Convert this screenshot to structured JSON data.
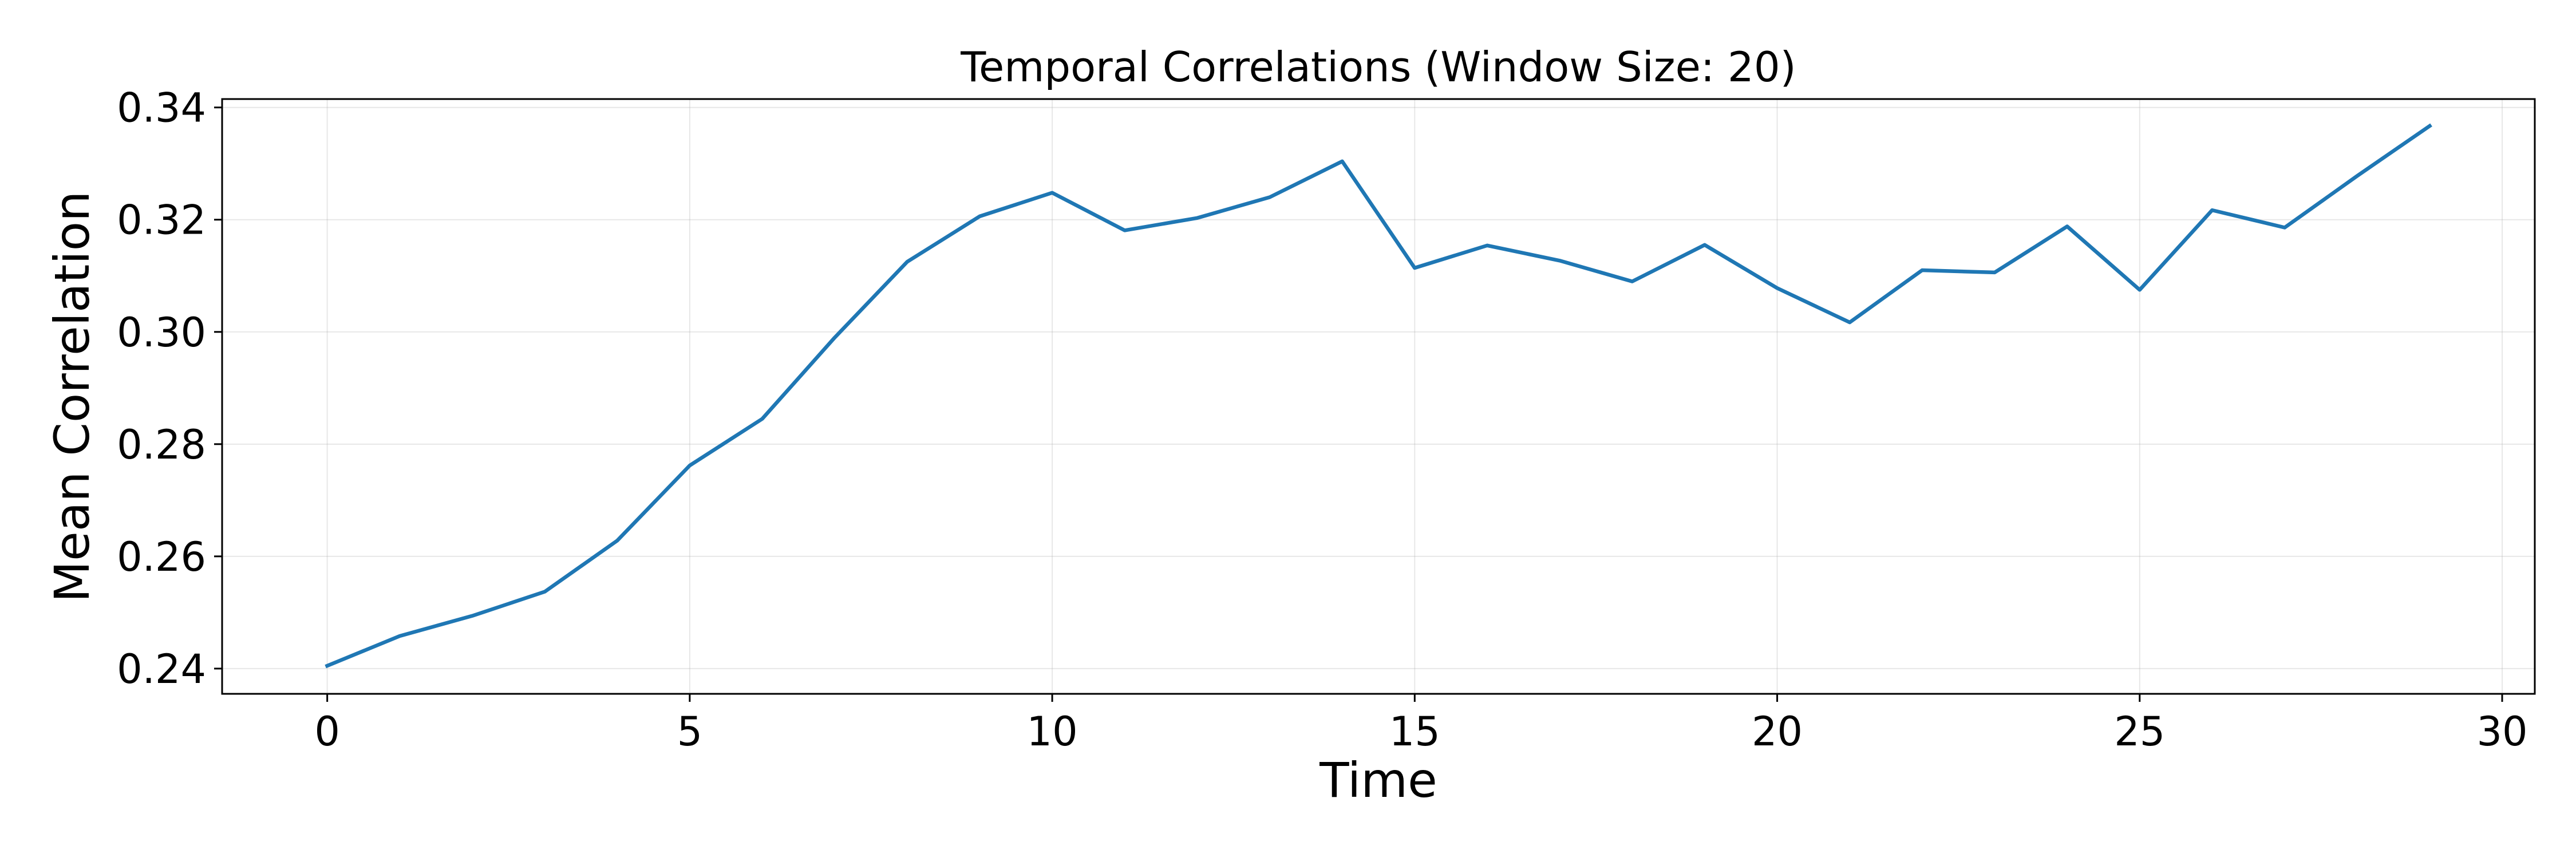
{
  "chart_data": {
    "type": "line",
    "title": "Temporal Correlations (Window Size: 20)",
    "xlabel": "Time",
    "ylabel": "Mean Correlation",
    "xlim": [
      -1.45,
      30.45
    ],
    "ylim": [
      0.2355,
      0.3415
    ],
    "xticks": [
      0,
      5,
      10,
      15,
      20,
      25,
      30
    ],
    "xtick_labels": [
      "0",
      "5",
      "10",
      "15",
      "20",
      "25",
      "30"
    ],
    "yticks": [
      0.24,
      0.26,
      0.28,
      0.3,
      0.32,
      0.34
    ],
    "ytick_labels": [
      "0.24",
      "0.26",
      "0.28",
      "0.30",
      "0.32",
      "0.34"
    ],
    "grid": true,
    "legend": "none",
    "series": [
      {
        "color": "#1f77b4",
        "x": [
          0,
          1,
          2,
          3,
          4,
          5,
          6,
          7,
          8,
          9,
          10,
          11,
          12,
          13,
          14,
          15,
          16,
          17,
          18,
          19,
          20,
          21,
          22,
          23,
          24,
          25,
          26,
          27,
          28,
          29
        ],
        "values": [
          0.2405,
          0.2458,
          0.2494,
          0.2537,
          0.2628,
          0.2762,
          0.2845,
          0.299,
          0.3125,
          0.3206,
          0.3248,
          0.3181,
          0.3203,
          0.324,
          0.3304,
          0.3114,
          0.3154,
          0.3127,
          0.309,
          0.3155,
          0.3078,
          0.3017,
          0.311,
          0.3106,
          0.3188,
          0.3075,
          0.3217,
          0.3186,
          0.3278,
          0.3367
        ]
      }
    ]
  }
}
